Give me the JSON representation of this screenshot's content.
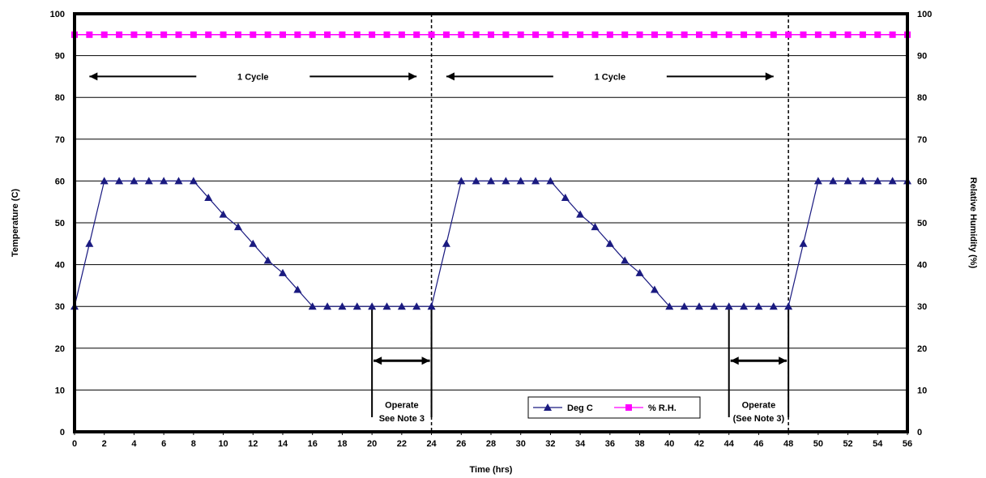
{
  "chart_data": {
    "type": "line",
    "xlabel": "Time (hrs)",
    "ylabel": "Temperature (C)",
    "y2label": "Relative Humidity (%)",
    "xlim": [
      0,
      56
    ],
    "ylim": [
      0,
      100
    ],
    "y2lim": [
      0,
      100
    ],
    "grid": "horizontal",
    "x_ticks": [
      "0",
      "2",
      "4",
      "6",
      "8",
      "10",
      "12",
      "14",
      "16",
      "18",
      "20",
      "22",
      "24",
      "26",
      "28",
      "30",
      "32",
      "34",
      "36",
      "38",
      "40",
      "42",
      "44",
      "46",
      "48",
      "50",
      "52",
      "54",
      "56"
    ],
    "y_ticks": [
      "0",
      "10",
      "20",
      "30",
      "40",
      "50",
      "60",
      "70",
      "80",
      "90",
      "100"
    ],
    "y2_ticks": [
      "0",
      "10",
      "20",
      "30",
      "40",
      "50",
      "60",
      "70",
      "80",
      "90",
      "100"
    ],
    "legend_position": "bottom-center",
    "series": [
      {
        "name": "Deg C",
        "color": "#1a1a80",
        "marker": "triangle",
        "x": [
          0,
          1,
          2,
          3,
          4,
          5,
          6,
          7,
          8,
          9,
          10,
          11,
          12,
          13,
          14,
          15,
          16,
          17,
          18,
          19,
          20,
          21,
          22,
          23,
          24,
          25,
          26,
          27,
          28,
          29,
          30,
          31,
          32,
          33,
          34,
          35,
          36,
          37,
          38,
          39,
          40,
          41,
          42,
          43,
          44,
          45,
          46,
          47,
          48,
          49,
          50,
          51,
          52,
          53,
          54,
          55,
          56
        ],
        "values": [
          30,
          45,
          60,
          60,
          60,
          60,
          60,
          60,
          60,
          56,
          52,
          49,
          45,
          41,
          38,
          34,
          30,
          30,
          30,
          30,
          30,
          30,
          30,
          30,
          30,
          45,
          60,
          60,
          60,
          60,
          60,
          60,
          60,
          56,
          52,
          49,
          45,
          41,
          38,
          34,
          30,
          30,
          30,
          30,
          30,
          30,
          30,
          30,
          30,
          45,
          60,
          60,
          60,
          60,
          60,
          60,
          60
        ]
      },
      {
        "name": "% R.H.",
        "color": "#ff00ff",
        "marker": "square",
        "x": [
          0,
          1,
          2,
          3,
          4,
          5,
          6,
          7,
          8,
          9,
          10,
          11,
          12,
          13,
          14,
          15,
          16,
          17,
          18,
          19,
          20,
          21,
          22,
          23,
          24,
          25,
          26,
          27,
          28,
          29,
          30,
          31,
          32,
          33,
          34,
          35,
          36,
          37,
          38,
          39,
          40,
          41,
          42,
          43,
          44,
          45,
          46,
          47,
          48,
          49,
          50,
          51,
          52,
          53,
          54,
          55,
          56
        ],
        "values": [
          95,
          95,
          95,
          95,
          95,
          95,
          95,
          95,
          95,
          95,
          95,
          95,
          95,
          95,
          95,
          95,
          95,
          95,
          95,
          95,
          95,
          95,
          95,
          95,
          95,
          95,
          95,
          95,
          95,
          95,
          95,
          95,
          95,
          95,
          95,
          95,
          95,
          95,
          95,
          95,
          95,
          95,
          95,
          95,
          95,
          95,
          95,
          95,
          95,
          95,
          95,
          95,
          95,
          95,
          95,
          95,
          95
        ]
      }
    ],
    "dashed_lines_x": [
      24,
      48
    ],
    "annotations": {
      "cycles": [
        {
          "label": "1 Cycle",
          "x_start": 1,
          "x_end": 23,
          "y": 85
        },
        {
          "label": "1 Cycle",
          "x_start": 25,
          "x_end": 47,
          "y": 85
        }
      ],
      "operate": [
        {
          "line1": "Operate",
          "line2": "See Note 3",
          "x_start": 20,
          "x_end": 24
        },
        {
          "line1": "Operate",
          "line2": "(See Note 3)",
          "x_start": 44,
          "x_end": 48
        }
      ]
    }
  }
}
